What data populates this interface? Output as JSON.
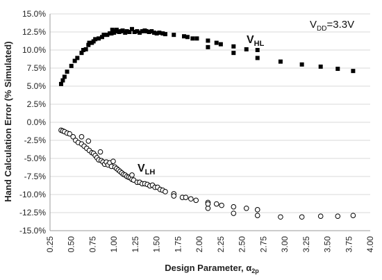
{
  "chart_data": {
    "type": "scatter",
    "title": "",
    "xlabel": "Design Parameter, ",
    "xlabel_symbol": "α",
    "xlabel_sub": "2p",
    "ylabel": "Hand Calculation Error (% Simulated)",
    "xlim": [
      0.25,
      4.0
    ],
    "ylim": [
      -15.0,
      15.0
    ],
    "x_ticks": [
      "0.25",
      "0.50",
      "0.75",
      "1.00",
      "1.25",
      "1.50",
      "1.75",
      "2.00",
      "2.25",
      "2.50",
      "2.75",
      "3.00",
      "3.25",
      "3.50",
      "3.75",
      "4.00"
    ],
    "y_ticks": [
      "-15.0%",
      "-12.5%",
      "-10.0%",
      "-7.5%",
      "-5.0%",
      "-2.5%",
      "0.0%",
      "2.5%",
      "5.0%",
      "7.5%",
      "10.0%",
      "12.5%",
      "15.0%"
    ],
    "grid": "horizontal",
    "legend": "none",
    "annotation": {
      "main": "V",
      "sub": "DD",
      "rest": "=3.3V",
      "position": "top-right"
    },
    "series": [
      {
        "label_main": "V",
        "label_sub": "HL",
        "marker": "filled-square",
        "color": "#000000",
        "points": [
          [
            0.38,
            5.3
          ],
          [
            0.4,
            5.8
          ],
          [
            0.42,
            6.3
          ],
          [
            0.45,
            7.0
          ],
          [
            0.5,
            7.8
          ],
          [
            0.54,
            8.5
          ],
          [
            0.57,
            8.9
          ],
          [
            0.62,
            9.6
          ],
          [
            0.64,
            10.0
          ],
          [
            0.67,
            10.1
          ],
          [
            0.7,
            10.7
          ],
          [
            0.71,
            11.0
          ],
          [
            0.74,
            11.0
          ],
          [
            0.76,
            11.2
          ],
          [
            0.78,
            11.5
          ],
          [
            0.82,
            11.6
          ],
          [
            0.86,
            11.8
          ],
          [
            0.88,
            12.1
          ],
          [
            0.92,
            12.1
          ],
          [
            0.95,
            12.3
          ],
          [
            0.97,
            12.3
          ],
          [
            0.98,
            12.8
          ],
          [
            1.0,
            12.4
          ],
          [
            1.02,
            12.6
          ],
          [
            1.03,
            12.8
          ],
          [
            1.06,
            12.5
          ],
          [
            1.08,
            12.6
          ],
          [
            1.1,
            12.7
          ],
          [
            1.13,
            12.4
          ],
          [
            1.15,
            12.6
          ],
          [
            1.18,
            12.5
          ],
          [
            1.21,
            12.9
          ],
          [
            1.24,
            12.5
          ],
          [
            1.27,
            12.6
          ],
          [
            1.3,
            12.4
          ],
          [
            1.33,
            12.6
          ],
          [
            1.36,
            12.7
          ],
          [
            1.38,
            12.6
          ],
          [
            1.41,
            12.5
          ],
          [
            1.44,
            12.6
          ],
          [
            1.47,
            12.4
          ],
          [
            1.5,
            12.3
          ],
          [
            1.53,
            12.4
          ],
          [
            1.57,
            12.3
          ],
          [
            1.6,
            12.2
          ],
          [
            1.7,
            12.1
          ],
          [
            1.82,
            11.9
          ],
          [
            1.86,
            11.8
          ],
          [
            1.92,
            11.6
          ],
          [
            1.97,
            11.6
          ],
          [
            2.1,
            11.3
          ],
          [
            2.1,
            10.4
          ],
          [
            2.2,
            11.0
          ],
          [
            2.25,
            10.8
          ],
          [
            2.4,
            10.5
          ],
          [
            2.4,
            9.6
          ],
          [
            2.55,
            10.1
          ],
          [
            2.68,
            10.0
          ],
          [
            2.68,
            8.9
          ],
          [
            2.95,
            8.4
          ],
          [
            3.2,
            8.0
          ],
          [
            3.42,
            7.7
          ],
          [
            3.62,
            7.4
          ],
          [
            3.8,
            7.1
          ]
        ]
      },
      {
        "label_main": "V",
        "label_sub": "LH",
        "marker": "open-circle",
        "color": "#000000",
        "points": [
          [
            0.38,
            -1.1
          ],
          [
            0.4,
            -1.2
          ],
          [
            0.42,
            -1.3
          ],
          [
            0.45,
            -1.5
          ],
          [
            0.48,
            -1.6
          ],
          [
            0.52,
            -2.0
          ],
          [
            0.55,
            -2.5
          ],
          [
            0.58,
            -2.8
          ],
          [
            0.62,
            -3.0
          ],
          [
            0.62,
            -2.0
          ],
          [
            0.65,
            -3.3
          ],
          [
            0.68,
            -3.6
          ],
          [
            0.7,
            -2.6
          ],
          [
            0.71,
            -3.9
          ],
          [
            0.74,
            -4.2
          ],
          [
            0.76,
            -4.3
          ],
          [
            0.78,
            -4.6
          ],
          [
            0.8,
            -4.9
          ],
          [
            0.82,
            -5.2
          ],
          [
            0.84,
            -4.1
          ],
          [
            0.85,
            -5.3
          ],
          [
            0.87,
            -5.5
          ],
          [
            0.89,
            -5.8
          ],
          [
            0.91,
            -5.5
          ],
          [
            0.93,
            -5.9
          ],
          [
            0.95,
            -5.6
          ],
          [
            0.97,
            -6.1
          ],
          [
            0.99,
            -5.4
          ],
          [
            1.01,
            -6.2
          ],
          [
            1.03,
            -6.4
          ],
          [
            1.05,
            -6.6
          ],
          [
            1.07,
            -6.8
          ],
          [
            1.09,
            -7.0
          ],
          [
            1.11,
            -7.2
          ],
          [
            1.13,
            -7.3
          ],
          [
            1.15,
            -7.5
          ],
          [
            1.17,
            -7.6
          ],
          [
            1.19,
            -7.7
          ],
          [
            1.21,
            -7.3
          ],
          [
            1.21,
            -7.9
          ],
          [
            1.23,
            -8.0
          ],
          [
            1.27,
            -8.3
          ],
          [
            1.3,
            -8.3
          ],
          [
            1.33,
            -8.5
          ],
          [
            1.36,
            -8.5
          ],
          [
            1.39,
            -8.6
          ],
          [
            1.42,
            -8.8
          ],
          [
            1.45,
            -8.7
          ],
          [
            1.48,
            -9.0
          ],
          [
            1.51,
            -9.0
          ],
          [
            1.54,
            -9.3
          ],
          [
            1.57,
            -9.4
          ],
          [
            1.6,
            -9.6
          ],
          [
            1.7,
            -9.9
          ],
          [
            1.7,
            -10.2
          ],
          [
            1.8,
            -10.4
          ],
          [
            1.84,
            -10.4
          ],
          [
            1.9,
            -10.6
          ],
          [
            1.96,
            -10.8
          ],
          [
            2.1,
            -11.1
          ],
          [
            2.1,
            -11.9
          ],
          [
            2.1,
            -11.3
          ],
          [
            2.2,
            -11.3
          ],
          [
            2.26,
            -11.5
          ],
          [
            2.4,
            -11.7
          ],
          [
            2.4,
            -12.6
          ],
          [
            2.55,
            -11.9
          ],
          [
            2.68,
            -12.1
          ],
          [
            2.68,
            -12.9
          ],
          [
            2.95,
            -13.1
          ],
          [
            3.2,
            -13.1
          ],
          [
            3.42,
            -13.0
          ],
          [
            3.62,
            -13.0
          ],
          [
            3.8,
            -12.9
          ]
        ]
      }
    ]
  }
}
